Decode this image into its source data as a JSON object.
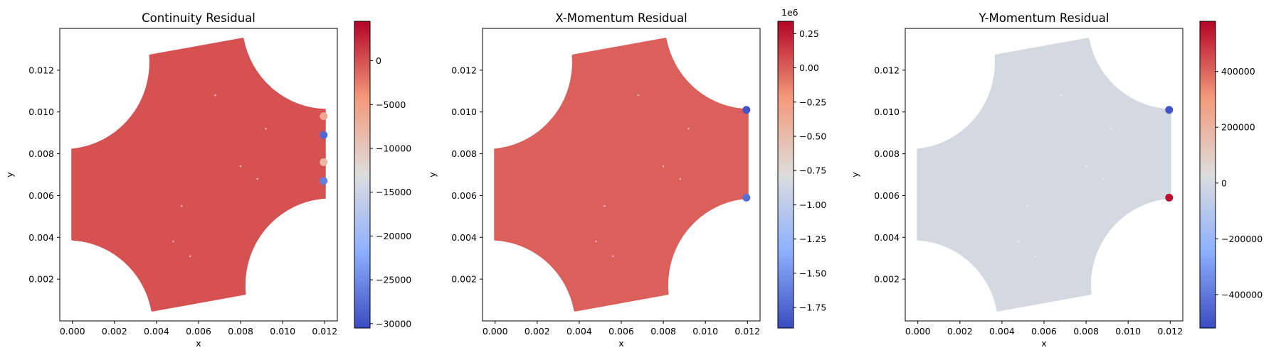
{
  "chart_data": [
    {
      "type": "scatter",
      "title": "Continuity Residual",
      "xlabel": "x",
      "ylabel": "y",
      "xlim": [
        -0.0006,
        0.0126
      ],
      "ylim": [
        0.0,
        0.014
      ],
      "xticks": [
        "0.000",
        "0.002",
        "0.004",
        "0.006",
        "0.008",
        "0.010",
        "0.012"
      ],
      "yticks": [
        "0.002",
        "0.004",
        "0.006",
        "0.008",
        "0.010",
        "0.012"
      ],
      "domain_shape": "cross-shaped region with four concave quarter-circle corners, tilted",
      "field_value_typical": 0,
      "colormap": "coolwarm",
      "colorbar": {
        "range": [
          -30500,
          4500
        ],
        "ticks": [
          "0",
          "−5000",
          "−10000",
          "−15000",
          "−20000",
          "−25000",
          "−30000"
        ],
        "tick_values": [
          0,
          -5000,
          -10000,
          -15000,
          -20000,
          -25000,
          -30000
        ],
        "offset_text": ""
      },
      "hotspots": [
        {
          "x": 0.01195,
          "y": 0.0089,
          "value": -28000
        },
        {
          "x": 0.01195,
          "y": 0.0067,
          "value": -26000
        },
        {
          "x": 0.01195,
          "y": 0.0098,
          "value": -6000
        },
        {
          "x": 0.01195,
          "y": 0.0076,
          "value": -8000
        }
      ]
    },
    {
      "type": "scatter",
      "title": "X-Momentum Residual",
      "xlabel": "x",
      "ylabel": "y",
      "xlim": [
        -0.0006,
        0.0126
      ],
      "ylim": [
        0.0,
        0.014
      ],
      "xticks": [
        "0.000",
        "0.002",
        "0.004",
        "0.006",
        "0.008",
        "0.010",
        "0.012"
      ],
      "yticks": [
        "0.002",
        "0.004",
        "0.006",
        "0.008",
        "0.010",
        "0.012"
      ],
      "domain_shape": "cross-shaped region with four concave quarter-circle corners, tilted",
      "field_value_typical": 0,
      "colormap": "coolwarm",
      "colorbar": {
        "range": [
          -1.9,
          0.34
        ],
        "ticks": [
          "0.25",
          "0.00",
          "−0.25",
          "−0.50",
          "−0.75",
          "−1.00",
          "−1.25",
          "−1.50",
          "−1.75"
        ],
        "tick_values": [
          0.25,
          0.0,
          -0.25,
          -0.5,
          -0.75,
          -1.0,
          -1.25,
          -1.5,
          -1.75
        ],
        "offset_text": "1e6"
      },
      "hotspots": [
        {
          "x": 0.01195,
          "y": 0.0101,
          "value": -1.85
        },
        {
          "x": 0.01195,
          "y": 0.0059,
          "value": -1.7
        }
      ]
    },
    {
      "type": "scatter",
      "title": "Y-Momentum Residual",
      "xlabel": "x",
      "ylabel": "y",
      "xlim": [
        -0.0006,
        0.0126
      ],
      "ylim": [
        0.0,
        0.014
      ],
      "xticks": [
        "0.000",
        "0.002",
        "0.004",
        "0.006",
        "0.008",
        "0.010",
        "0.012"
      ],
      "yticks": [
        "0.002",
        "0.004",
        "0.006",
        "0.008",
        "0.010",
        "0.012"
      ],
      "domain_shape": "cross-shaped region with four concave quarter-circle corners, tilted",
      "field_value_typical": 0,
      "colormap": "coolwarm",
      "colorbar": {
        "range": [
          -520000,
          580000
        ],
        "ticks": [
          "400000",
          "200000",
          "0",
          "−200000",
          "−400000"
        ],
        "tick_values": [
          400000,
          200000,
          0,
          -200000,
          -400000
        ],
        "offset_text": ""
      },
      "hotspots": [
        {
          "x": 0.01195,
          "y": 0.0101,
          "value": -500000
        },
        {
          "x": 0.01195,
          "y": 0.0059,
          "value": 560000
        }
      ]
    }
  ]
}
